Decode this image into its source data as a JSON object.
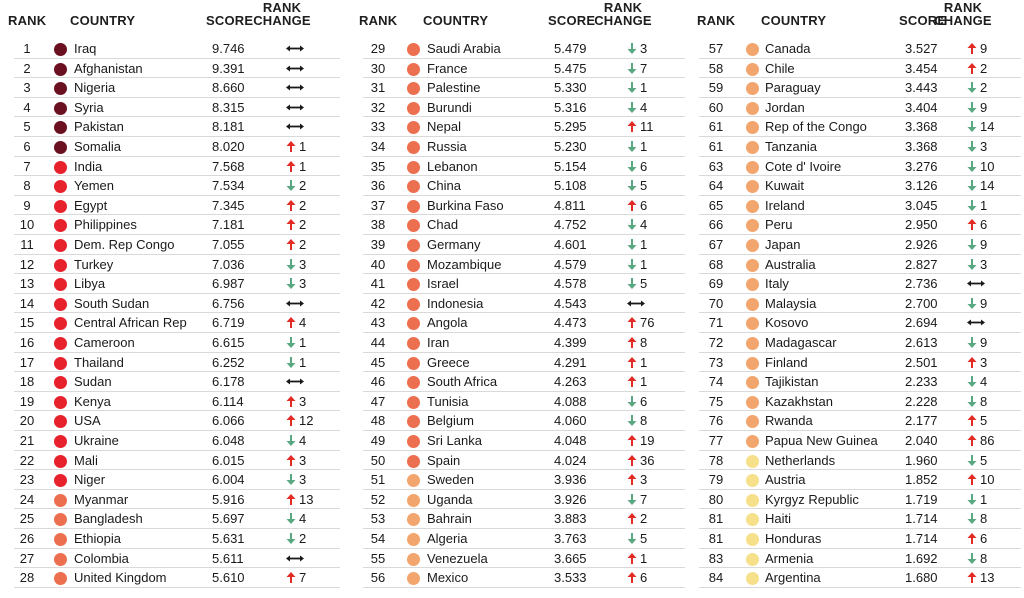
{
  "headers": {
    "rank": "RANK",
    "country": "COUNTRY",
    "score": "SCORE",
    "change_line1": "RANK",
    "change_line2": "CHANGE"
  },
  "colors": {
    "c1": "#6b1020",
    "c2": "#e8222d",
    "c3": "#ec7050",
    "c4": "#f2a66e",
    "c5": "#f7e08a",
    "up": "#e32b26",
    "down": "#5aa882",
    "same": "#1a1a1a"
  },
  "columns": [
    [
      {
        "rank": "1",
        "country": "Iraq",
        "score": "9.746",
        "tier": "c1",
        "dir": "same",
        "delta": ""
      },
      {
        "rank": "2",
        "country": "Afghanistan",
        "score": "9.391",
        "tier": "c1",
        "dir": "same",
        "delta": ""
      },
      {
        "rank": "3",
        "country": "Nigeria",
        "score": "8.660",
        "tier": "c1",
        "dir": "same",
        "delta": ""
      },
      {
        "rank": "4",
        "country": "Syria",
        "score": "8.315",
        "tier": "c1",
        "dir": "same",
        "delta": ""
      },
      {
        "rank": "5",
        "country": "Pakistan",
        "score": "8.181",
        "tier": "c1",
        "dir": "same",
        "delta": ""
      },
      {
        "rank": "6",
        "country": "Somalia",
        "score": "8.020",
        "tier": "c1",
        "dir": "up",
        "delta": "1"
      },
      {
        "rank": "7",
        "country": "India",
        "score": "7.568",
        "tier": "c2",
        "dir": "up",
        "delta": "1"
      },
      {
        "rank": "8",
        "country": "Yemen",
        "score": "7.534",
        "tier": "c2",
        "dir": "down",
        "delta": "2"
      },
      {
        "rank": "9",
        "country": "Egypt",
        "score": "7.345",
        "tier": "c2",
        "dir": "up",
        "delta": "2"
      },
      {
        "rank": "10",
        "country": "Philippines",
        "score": "7.181",
        "tier": "c2",
        "dir": "up",
        "delta": "2"
      },
      {
        "rank": "11",
        "country": "Dem. Rep Congo",
        "score": "7.055",
        "tier": "c2",
        "dir": "up",
        "delta": "2"
      },
      {
        "rank": "12",
        "country": "Turkey",
        "score": "7.036",
        "tier": "c2",
        "dir": "down",
        "delta": "3"
      },
      {
        "rank": "13",
        "country": "Libya",
        "score": "6.987",
        "tier": "c2",
        "dir": "down",
        "delta": "3"
      },
      {
        "rank": "14",
        "country": "South Sudan",
        "score": "6.756",
        "tier": "c2",
        "dir": "same",
        "delta": ""
      },
      {
        "rank": "15",
        "country": "Central African Rep",
        "score": "6.719",
        "tier": "c2",
        "dir": "up",
        "delta": "4"
      },
      {
        "rank": "16",
        "country": "Cameroon",
        "score": "6.615",
        "tier": "c2",
        "dir": "down",
        "delta": "1"
      },
      {
        "rank": "17",
        "country": "Thailand",
        "score": "6.252",
        "tier": "c2",
        "dir": "down",
        "delta": "1"
      },
      {
        "rank": "18",
        "country": "Sudan",
        "score": "6.178",
        "tier": "c2",
        "dir": "same",
        "delta": ""
      },
      {
        "rank": "19",
        "country": "Kenya",
        "score": "6.114",
        "tier": "c2",
        "dir": "up",
        "delta": "3"
      },
      {
        "rank": "20",
        "country": "USA",
        "score": "6.066",
        "tier": "c2",
        "dir": "up",
        "delta": "12"
      },
      {
        "rank": "21",
        "country": "Ukraine",
        "score": "6.048",
        "tier": "c2",
        "dir": "down",
        "delta": "4"
      },
      {
        "rank": "22",
        "country": "Mali",
        "score": "6.015",
        "tier": "c2",
        "dir": "up",
        "delta": "3"
      },
      {
        "rank": "23",
        "country": "Niger",
        "score": "6.004",
        "tier": "c2",
        "dir": "down",
        "delta": "3"
      },
      {
        "rank": "24",
        "country": "Myanmar",
        "score": "5.916",
        "tier": "c3",
        "dir": "up",
        "delta": "13"
      },
      {
        "rank": "25",
        "country": "Bangladesh",
        "score": "5.697",
        "tier": "c3",
        "dir": "down",
        "delta": "4"
      },
      {
        "rank": "26",
        "country": "Ethiopia",
        "score": "5.631",
        "tier": "c3",
        "dir": "down",
        "delta": "2"
      },
      {
        "rank": "27",
        "country": "Colombia",
        "score": "5.611",
        "tier": "c3",
        "dir": "same",
        "delta": ""
      },
      {
        "rank": "28",
        "country": "United Kingdom",
        "score": "5.610",
        "tier": "c3",
        "dir": "up",
        "delta": "7"
      }
    ],
    [
      {
        "rank": "29",
        "country": "Saudi Arabia",
        "score": "5.479",
        "tier": "c3",
        "dir": "down",
        "delta": "3"
      },
      {
        "rank": "30",
        "country": "France",
        "score": "5.475",
        "tier": "c3",
        "dir": "down",
        "delta": "7"
      },
      {
        "rank": "31",
        "country": "Palestine",
        "score": "5.330",
        "tier": "c3",
        "dir": "down",
        "delta": "1"
      },
      {
        "rank": "32",
        "country": "Burundi",
        "score": "5.316",
        "tier": "c3",
        "dir": "down",
        "delta": "4"
      },
      {
        "rank": "33",
        "country": "Nepal",
        "score": "5.295",
        "tier": "c3",
        "dir": "up",
        "delta": "11"
      },
      {
        "rank": "34",
        "country": "Russia",
        "score": "5.230",
        "tier": "c3",
        "dir": "down",
        "delta": "1"
      },
      {
        "rank": "35",
        "country": "Lebanon",
        "score": "5.154",
        "tier": "c3",
        "dir": "down",
        "delta": "6"
      },
      {
        "rank": "36",
        "country": "China",
        "score": "5.108",
        "tier": "c3",
        "dir": "down",
        "delta": "5"
      },
      {
        "rank": "37",
        "country": "Burkina Faso",
        "score": "4.811",
        "tier": "c3",
        "dir": "up",
        "delta": "6"
      },
      {
        "rank": "38",
        "country": "Chad",
        "score": "4.752",
        "tier": "c3",
        "dir": "down",
        "delta": "4"
      },
      {
        "rank": "39",
        "country": "Germany",
        "score": "4.601",
        "tier": "c3",
        "dir": "down",
        "delta": "1"
      },
      {
        "rank": "40",
        "country": "Mozambique",
        "score": "4.579",
        "tier": "c3",
        "dir": "down",
        "delta": "1"
      },
      {
        "rank": "41",
        "country": "Israel",
        "score": "4.578",
        "tier": "c3",
        "dir": "down",
        "delta": "5"
      },
      {
        "rank": "42",
        "country": "Indonesia",
        "score": "4.543",
        "tier": "c3",
        "dir": "same",
        "delta": ""
      },
      {
        "rank": "43",
        "country": "Angola",
        "score": "4.473",
        "tier": "c3",
        "dir": "up",
        "delta": "76"
      },
      {
        "rank": "44",
        "country": "Iran",
        "score": "4.399",
        "tier": "c3",
        "dir": "up",
        "delta": "8"
      },
      {
        "rank": "45",
        "country": "Greece",
        "score": "4.291",
        "tier": "c3",
        "dir": "up",
        "delta": "1"
      },
      {
        "rank": "46",
        "country": "South Africa",
        "score": "4.263",
        "tier": "c3",
        "dir": "up",
        "delta": "1"
      },
      {
        "rank": "47",
        "country": "Tunisia",
        "score": "4.088",
        "tier": "c3",
        "dir": "down",
        "delta": "6"
      },
      {
        "rank": "48",
        "country": "Belgium",
        "score": "4.060",
        "tier": "c3",
        "dir": "down",
        "delta": "8"
      },
      {
        "rank": "49",
        "country": "Sri Lanka",
        "score": "4.048",
        "tier": "c3",
        "dir": "up",
        "delta": "19"
      },
      {
        "rank": "50",
        "country": "Spain",
        "score": "4.024",
        "tier": "c3",
        "dir": "up",
        "delta": "36"
      },
      {
        "rank": "51",
        "country": "Sweden",
        "score": "3.936",
        "tier": "c4",
        "dir": "up",
        "delta": "3"
      },
      {
        "rank": "52",
        "country": "Uganda",
        "score": "3.926",
        "tier": "c4",
        "dir": "down",
        "delta": "7"
      },
      {
        "rank": "53",
        "country": "Bahrain",
        "score": "3.883",
        "tier": "c4",
        "dir": "up",
        "delta": "2"
      },
      {
        "rank": "54",
        "country": "Algeria",
        "score": "3.763",
        "tier": "c4",
        "dir": "down",
        "delta": "5"
      },
      {
        "rank": "55",
        "country": "Venezuela",
        "score": "3.665",
        "tier": "c4",
        "dir": "up",
        "delta": "1"
      },
      {
        "rank": "56",
        "country": "Mexico",
        "score": "3.533",
        "tier": "c4",
        "dir": "up",
        "delta": "6"
      }
    ],
    [
      {
        "rank": "57",
        "country": "Canada",
        "score": "3.527",
        "tier": "c4",
        "dir": "up",
        "delta": "9"
      },
      {
        "rank": "58",
        "country": "Chile",
        "score": "3.454",
        "tier": "c4",
        "dir": "up",
        "delta": "2"
      },
      {
        "rank": "59",
        "country": "Paraguay",
        "score": "3.443",
        "tier": "c4",
        "dir": "down",
        "delta": "2"
      },
      {
        "rank": "60",
        "country": "Jordan",
        "score": "3.404",
        "tier": "c4",
        "dir": "down",
        "delta": "9"
      },
      {
        "rank": "61",
        "country": "Rep of the Congo",
        "score": "3.368",
        "tier": "c4",
        "dir": "down",
        "delta": "14"
      },
      {
        "rank": "61",
        "country": "Tanzania",
        "score": "3.368",
        "tier": "c4",
        "dir": "down",
        "delta": "3"
      },
      {
        "rank": "63",
        "country": "Cote d' Ivoire",
        "score": "3.276",
        "tier": "c4",
        "dir": "down",
        "delta": "10"
      },
      {
        "rank": "64",
        "country": "Kuwait",
        "score": "3.126",
        "tier": "c4",
        "dir": "down",
        "delta": "14"
      },
      {
        "rank": "65",
        "country": "Ireland",
        "score": "3.045",
        "tier": "c4",
        "dir": "down",
        "delta": "1"
      },
      {
        "rank": "66",
        "country": "Peru",
        "score": "2.950",
        "tier": "c4",
        "dir": "up",
        "delta": "6"
      },
      {
        "rank": "67",
        "country": "Japan",
        "score": "2.926",
        "tier": "c4",
        "dir": "down",
        "delta": "9"
      },
      {
        "rank": "68",
        "country": "Australia",
        "score": "2.827",
        "tier": "c4",
        "dir": "down",
        "delta": "3"
      },
      {
        "rank": "69",
        "country": "Italy",
        "score": "2.736",
        "tier": "c4",
        "dir": "same",
        "delta": ""
      },
      {
        "rank": "70",
        "country": "Malaysia",
        "score": "2.700",
        "tier": "c4",
        "dir": "down",
        "delta": "9"
      },
      {
        "rank": "71",
        "country": "Kosovo",
        "score": "2.694",
        "tier": "c4",
        "dir": "same",
        "delta": ""
      },
      {
        "rank": "72",
        "country": "Madagascar",
        "score": "2.613",
        "tier": "c4",
        "dir": "down",
        "delta": "9"
      },
      {
        "rank": "73",
        "country": "Finland",
        "score": "2.501",
        "tier": "c4",
        "dir": "up",
        "delta": "3"
      },
      {
        "rank": "74",
        "country": "Tajikistan",
        "score": "2.233",
        "tier": "c4",
        "dir": "down",
        "delta": "4"
      },
      {
        "rank": "75",
        "country": "Kazakhstan",
        "score": "2.228",
        "tier": "c4",
        "dir": "down",
        "delta": "8"
      },
      {
        "rank": "76",
        "country": "Rwanda",
        "score": "2.177",
        "tier": "c4",
        "dir": "up",
        "delta": "5"
      },
      {
        "rank": "77",
        "country": "Papua New Guinea",
        "score": "2.040",
        "tier": "c4",
        "dir": "up",
        "delta": "86"
      },
      {
        "rank": "78",
        "country": "Netherlands",
        "score": "1.960",
        "tier": "c5",
        "dir": "down",
        "delta": "5"
      },
      {
        "rank": "79",
        "country": "Austria",
        "score": "1.852",
        "tier": "c5",
        "dir": "up",
        "delta": "10"
      },
      {
        "rank": "80",
        "country": "Kyrgyz Republic",
        "score": "1.719",
        "tier": "c5",
        "dir": "down",
        "delta": "1"
      },
      {
        "rank": "81",
        "country": "Haiti",
        "score": "1.714",
        "tier": "c5",
        "dir": "down",
        "delta": "8"
      },
      {
        "rank": "81",
        "country": "Honduras",
        "score": "1.714",
        "tier": "c5",
        "dir": "up",
        "delta": "6"
      },
      {
        "rank": "83",
        "country": "Armenia",
        "score": "1.692",
        "tier": "c5",
        "dir": "down",
        "delta": "8"
      },
      {
        "rank": "84",
        "country": "Argentina",
        "score": "1.680",
        "tier": "c5",
        "dir": "up",
        "delta": "13"
      }
    ]
  ]
}
